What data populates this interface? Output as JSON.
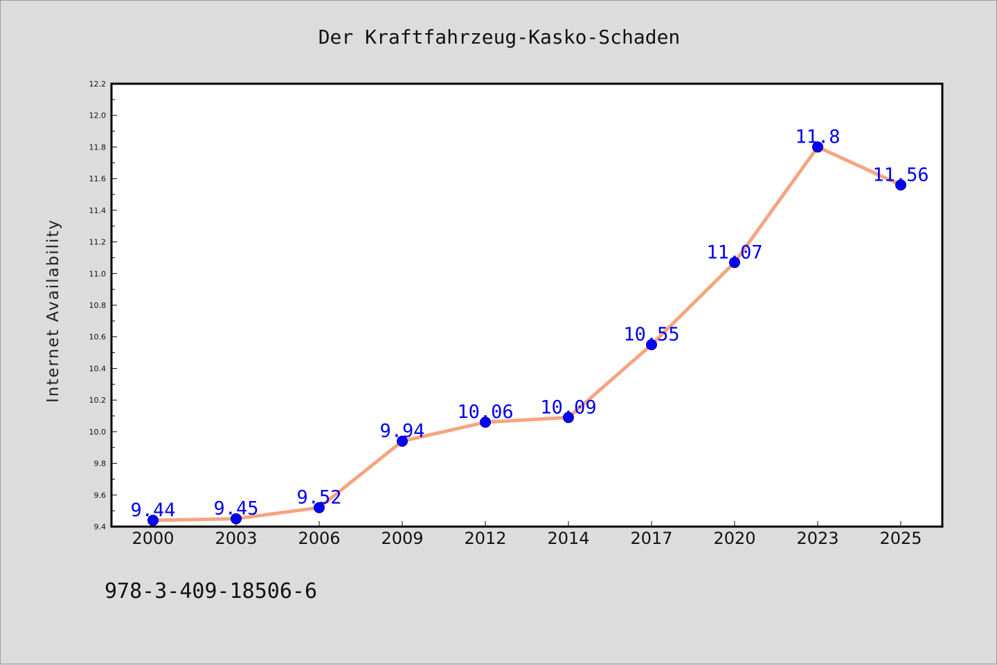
{
  "chart_data": {
    "type": "line",
    "title": "Der Kraftfahrzeug-Kasko-Schaden",
    "xlabel": "",
    "ylabel": "Internet Availability",
    "categories": [
      "2000",
      "2003",
      "2006",
      "2009",
      "2012",
      "2014",
      "2017",
      "2020",
      "2023",
      "2025"
    ],
    "series": [
      {
        "values": [
          9.44,
          9.45,
          9.52,
          9.94,
          10.06,
          10.09,
          10.55,
          11.07,
          11.8,
          11.56
        ]
      }
    ],
    "data_labels": [
      "9.44",
      "9.45",
      "9.52",
      "9.94",
      "10.06",
      "10.09",
      "10.55",
      "11.07",
      "11.8",
      "11.56"
    ],
    "ylim": [
      9.4,
      12.2
    ],
    "yticks": [
      "9.4",
      "9.6",
      "9.8",
      "10.0",
      "10.2",
      "10.4",
      "10.6",
      "10.8",
      "11.0",
      "11.2",
      "11.4",
      "11.6",
      "11.8",
      "12.0",
      "12.2"
    ],
    "grid": false,
    "legend": "none",
    "colors": {
      "line": "#f4a582",
      "marker": "#0000ff",
      "label": "#0000ee",
      "background": "#dcdcdc",
      "plot_area": "#ffffff"
    }
  },
  "footer": {
    "isbn": "978-3-409-18506-6"
  }
}
